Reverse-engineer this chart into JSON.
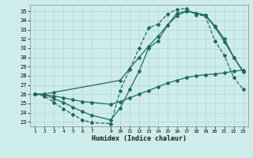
{
  "xlabel": "Humidex (Indice chaleur)",
  "bg_color": "#ceecea",
  "line_color": "#1e6b63",
  "grid_color": "#add8d4",
  "ylim": [
    22.5,
    35.7
  ],
  "xlim": [
    0.5,
    23.5
  ],
  "yticks": [
    23,
    24,
    25,
    26,
    27,
    28,
    29,
    30,
    31,
    32,
    33,
    34,
    35
  ],
  "xticks": [
    1,
    2,
    3,
    4,
    5,
    6,
    7,
    9,
    10,
    11,
    12,
    13,
    14,
    15,
    16,
    17,
    18,
    19,
    20,
    21,
    22,
    23
  ],
  "lines": [
    {
      "x": [
        1,
        2,
        3,
        4,
        5,
        6,
        7,
        9,
        10,
        11,
        12,
        13,
        14,
        15,
        16,
        17,
        18,
        19,
        20,
        21,
        22,
        23
      ],
      "y": [
        26.0,
        25.9,
        25.8,
        25.6,
        25.4,
        25.2,
        25.1,
        24.9,
        25.2,
        25.6,
        26.0,
        26.4,
        26.8,
        27.2,
        27.5,
        27.8,
        28.0,
        28.1,
        28.2,
        28.3,
        28.5,
        28.6
      ],
      "marker": "D",
      "markersize": 2.0,
      "linewidth": 0.9,
      "linestyle": "-"
    },
    {
      "x": [
        1,
        2,
        3,
        4,
        5,
        6,
        7,
        9,
        10,
        11,
        12,
        13,
        14,
        15,
        16,
        17,
        18,
        19,
        20,
        21,
        22,
        23
      ],
      "y": [
        26.0,
        26.0,
        25.5,
        25.1,
        24.6,
        24.1,
        23.7,
        23.2,
        24.5,
        26.5,
        28.5,
        31.0,
        31.8,
        33.5,
        34.8,
        35.0,
        34.8,
        34.6,
        33.4,
        32.0,
        30.0,
        28.5
      ],
      "marker": "D",
      "markersize": 2.0,
      "linewidth": 0.9,
      "linestyle": "-"
    },
    {
      "x": [
        1,
        2,
        3,
        4,
        5,
        6,
        7,
        9,
        10,
        11,
        12,
        13,
        14,
        15,
        16,
        17,
        18,
        19,
        20,
        21,
        22,
        23
      ],
      "y": [
        26.0,
        25.8,
        25.1,
        24.4,
        23.8,
        23.2,
        22.9,
        22.8,
        26.4,
        28.7,
        31.0,
        33.2,
        33.6,
        34.7,
        35.2,
        35.3,
        34.6,
        34.5,
        31.8,
        30.2,
        27.8,
        26.5
      ],
      "marker": "D",
      "markersize": 2.0,
      "linewidth": 0.9,
      "linestyle": "--"
    },
    {
      "x": [
        1,
        2,
        3,
        10,
        11,
        12,
        13,
        14,
        15,
        16,
        17,
        18,
        19,
        20,
        21,
        22,
        23
      ],
      "y": [
        26.0,
        26.0,
        26.2,
        27.5,
        28.8,
        30.0,
        31.2,
        32.3,
        33.5,
        34.5,
        35.0,
        34.8,
        34.5,
        33.3,
        31.7,
        30.0,
        28.4
      ],
      "marker": "D",
      "markersize": 2.0,
      "linewidth": 0.9,
      "linestyle": "-"
    }
  ]
}
